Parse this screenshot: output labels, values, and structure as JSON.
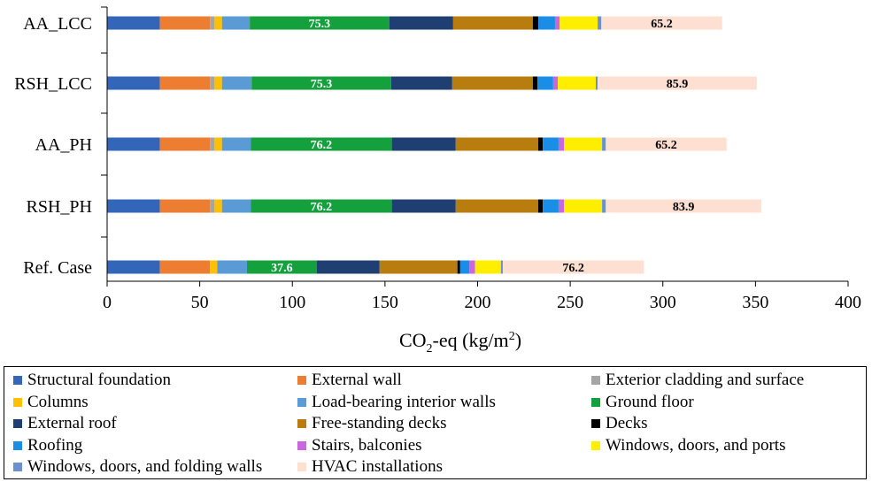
{
  "chart_data": {
    "type": "bar",
    "orientation": "horizontal",
    "stacked": true,
    "categories": [
      "AA_LCC",
      "RSH_LCC",
      "AA_PH",
      "RSH_PH",
      "Ref. Case"
    ],
    "xlabel_main": "CO",
    "xlabel_sub": "2",
    "xlabel_mid": "-eq (kg/m",
    "xlabel_sup": "2",
    "xlabel_end": ")",
    "xlim": [
      0,
      400
    ],
    "xticks": [
      "0",
      "50",
      "100",
      "150",
      "200",
      "250",
      "300",
      "350",
      "400"
    ],
    "grid": false,
    "legend_position": "bottom",
    "series": [
      {
        "name": "Structural foundation",
        "color": "#3366b8",
        "values": [
          28.5,
          28.5,
          28.5,
          28.5,
          28.5
        ]
      },
      {
        "name": "External wall",
        "color": "#ed7d31",
        "values": [
          27,
          27,
          27,
          27,
          27
        ]
      },
      {
        "name": "Exterior cladding and surface",
        "color": "#a5a5a5",
        "values": [
          2.5,
          2.5,
          2.5,
          2.5,
          0
        ]
      },
      {
        "name": "Columns",
        "color": "#ffc000",
        "values": [
          4,
          4,
          4,
          4,
          4
        ]
      },
      {
        "name": "Load-bearing interior walls",
        "color": "#5b9bd5",
        "values": [
          15,
          16,
          15.5,
          15.5,
          16
        ]
      },
      {
        "name": "Ground floor",
        "color": "#14a03c",
        "values": [
          75.3,
          75.3,
          76.2,
          76.2,
          37.6
        ]
      },
      {
        "name": "External roof",
        "color": "#1f3f73",
        "values": [
          34.5,
          33,
          34.5,
          34.5,
          34
        ]
      },
      {
        "name": "Free-standing decks",
        "color": "#b87d0e",
        "values": [
          43,
          43.5,
          44.5,
          44.5,
          42
        ]
      },
      {
        "name": "Decks",
        "color": "#000000",
        "values": [
          3,
          2.5,
          2.5,
          2.5,
          1.5
        ]
      },
      {
        "name": "Roofing",
        "color": "#1a8ee6",
        "values": [
          9,
          8.5,
          8.5,
          8.5,
          5
        ]
      },
      {
        "name": "Stairs, balconies",
        "color": "#cc66e0",
        "values": [
          2.5,
          2.5,
          3,
          3,
          3
        ]
      },
      {
        "name": "Windows, doors, and ports",
        "color": "#ffee00",
        "values": [
          20.5,
          20.5,
          20.5,
          20.5,
          14
        ]
      },
      {
        "name": "Windows, doors, and folding walls",
        "color": "#6a90d0",
        "values": [
          2,
          1,
          2,
          2,
          1
        ]
      },
      {
        "name": "HVAC installations",
        "color": "#fde0d2",
        "values": [
          65.2,
          85.9,
          65.2,
          83.9,
          76.2
        ]
      }
    ],
    "data_labels": [
      {
        "category": "AA_LCC",
        "series": "Ground floor",
        "text": "75.3"
      },
      {
        "category": "AA_LCC",
        "series": "HVAC installations",
        "text": "65.2"
      },
      {
        "category": "RSH_LCC",
        "series": "Ground floor",
        "text": "75.3"
      },
      {
        "category": "RSH_LCC",
        "series": "HVAC installations",
        "text": "85.9"
      },
      {
        "category": "AA_PH",
        "series": "Ground floor",
        "text": "76.2"
      },
      {
        "category": "AA_PH",
        "series": "HVAC installations",
        "text": "65.2"
      },
      {
        "category": "RSH_PH",
        "series": "Ground floor",
        "text": "76.2"
      },
      {
        "category": "RSH_PH",
        "series": "HVAC installations",
        "text": "83.9"
      },
      {
        "category": "Ref. Case",
        "series": "Ground floor",
        "text": "37.6"
      },
      {
        "category": "Ref. Case",
        "series": "HVAC installations",
        "text": "76.2"
      }
    ]
  }
}
